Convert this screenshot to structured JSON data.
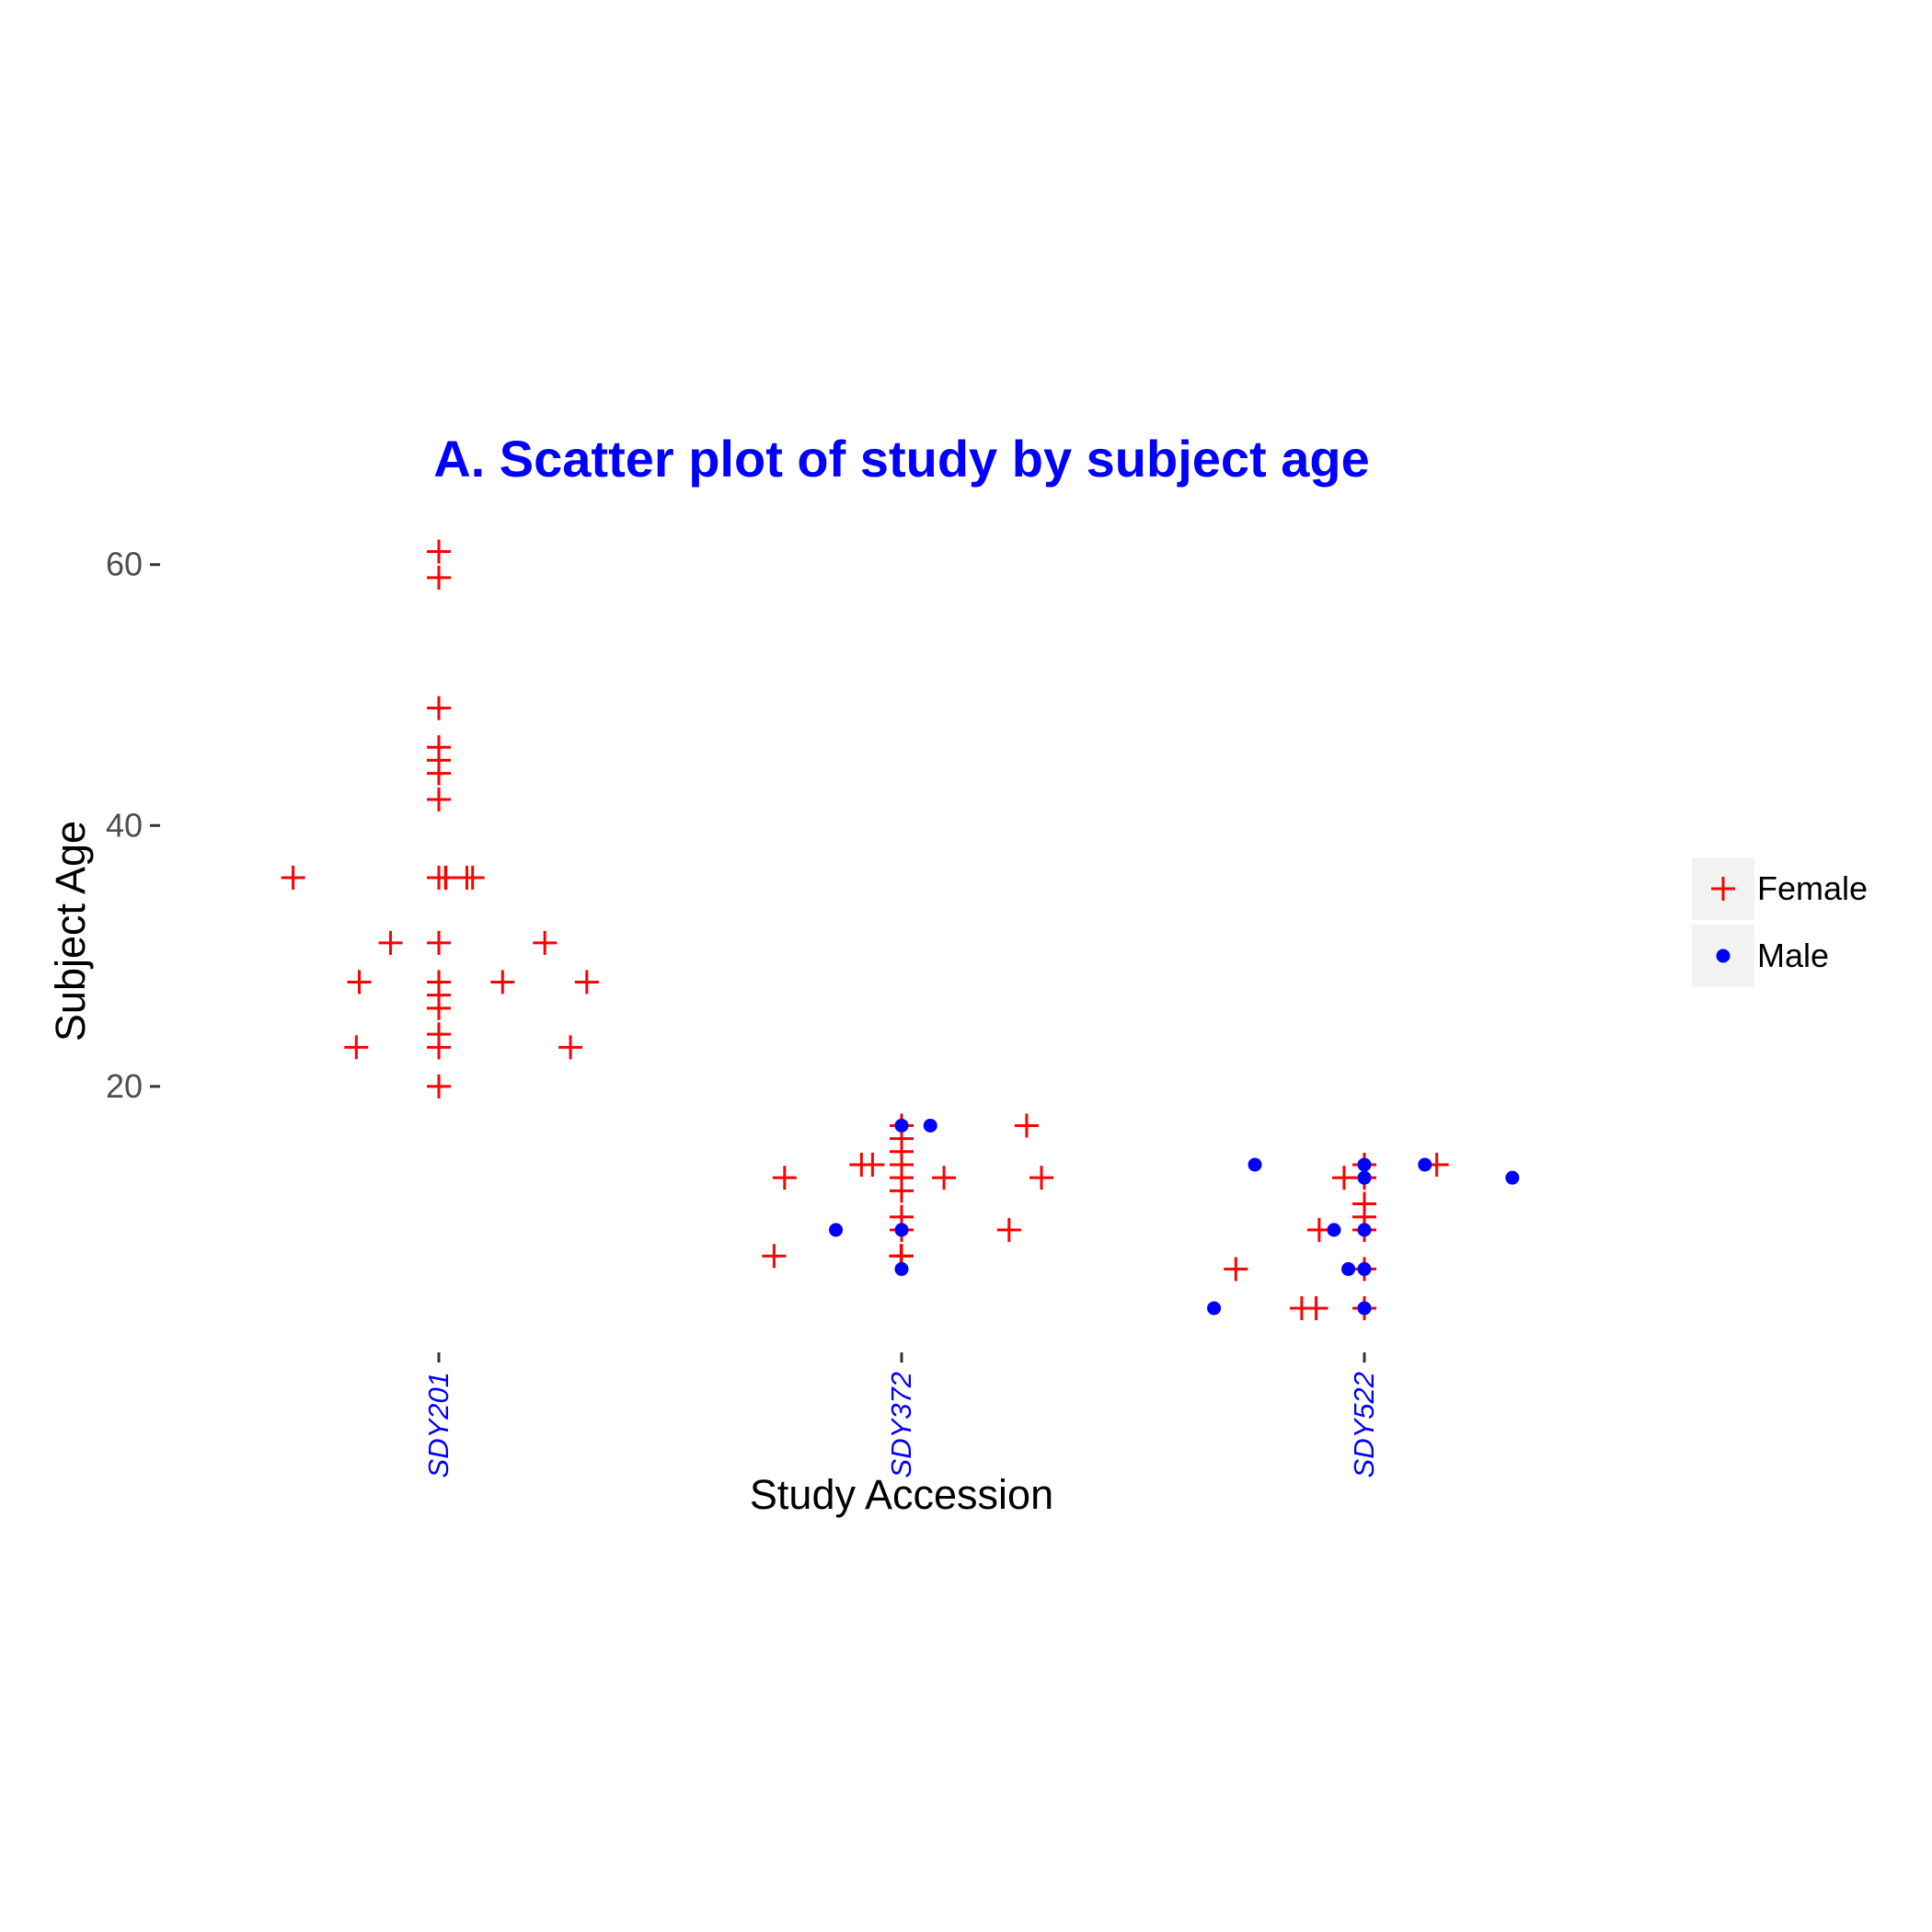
{
  "chart_data": {
    "type": "scatter",
    "title": "A. Scatter plot of study by subject age",
    "xlabel": "Study Accession",
    "ylabel": "Subject Age",
    "categories": [
      "SDY201",
      "SDY372",
      "SDY522"
    ],
    "y_ticks": [
      "20",
      "40",
      "60"
    ],
    "ylim": [
      0,
      63
    ],
    "grid": false,
    "legend_position": "right",
    "colors": {
      "title": "#0000ff",
      "xtick": "#0000ff",
      "female": "#ff0000",
      "male": "#0000ff"
    },
    "series": [
      {
        "name": "Female",
        "marker": "plus",
        "points": [
          {
            "study": "SDY201",
            "age": 61
          },
          {
            "study": "SDY201",
            "age": 59
          },
          {
            "study": "SDY201",
            "age": 49
          },
          {
            "study": "SDY201",
            "age": 46
          },
          {
            "study": "SDY201",
            "age": 45
          },
          {
            "study": "SDY201",
            "age": 44
          },
          {
            "study": "SDY201",
            "age": 42
          },
          {
            "study": "SDY201",
            "age": 36
          },
          {
            "study": "SDY201",
            "age": 36
          },
          {
            "study": "SDY201",
            "age": 36
          },
          {
            "study": "SDY201",
            "age": 36
          },
          {
            "study": "SDY201",
            "age": 36
          },
          {
            "study": "SDY201",
            "age": 36
          },
          {
            "study": "SDY201",
            "age": 31
          },
          {
            "study": "SDY201",
            "age": 31
          },
          {
            "study": "SDY201",
            "age": 31
          },
          {
            "study": "SDY201",
            "age": 28
          },
          {
            "study": "SDY201",
            "age": 28
          },
          {
            "study": "SDY201",
            "age": 28
          },
          {
            "study": "SDY201",
            "age": 28
          },
          {
            "study": "SDY201",
            "age": 27
          },
          {
            "study": "SDY201",
            "age": 26
          },
          {
            "study": "SDY201",
            "age": 24
          },
          {
            "study": "SDY201",
            "age": 23
          },
          {
            "study": "SDY201",
            "age": 23
          },
          {
            "study": "SDY201",
            "age": 23
          },
          {
            "study": "SDY201",
            "age": 20
          },
          {
            "study": "SDY372",
            "age": 17
          },
          {
            "study": "SDY372",
            "age": 17
          },
          {
            "study": "SDY372",
            "age": 16
          },
          {
            "study": "SDY372",
            "age": 15
          },
          {
            "study": "SDY372",
            "age": 14
          },
          {
            "study": "SDY372",
            "age": 14
          },
          {
            "study": "SDY372",
            "age": 14
          },
          {
            "study": "SDY372",
            "age": 13
          },
          {
            "study": "SDY372",
            "age": 13
          },
          {
            "study": "SDY372",
            "age": 13
          },
          {
            "study": "SDY372",
            "age": 13
          },
          {
            "study": "SDY372",
            "age": 12
          },
          {
            "study": "SDY372",
            "age": 10
          },
          {
            "study": "SDY372",
            "age": 9
          },
          {
            "study": "SDY372",
            "age": 9
          },
          {
            "study": "SDY372",
            "age": 7
          },
          {
            "study": "SDY372",
            "age": 7
          },
          {
            "study": "SDY372",
            "age": 7
          },
          {
            "study": "SDY522",
            "age": 14
          },
          {
            "study": "SDY522",
            "age": 14
          },
          {
            "study": "SDY522",
            "age": 13
          },
          {
            "study": "SDY522",
            "age": 13
          },
          {
            "study": "SDY522",
            "age": 11
          },
          {
            "study": "SDY522",
            "age": 10
          },
          {
            "study": "SDY522",
            "age": 9
          },
          {
            "study": "SDY522",
            "age": 9
          },
          {
            "study": "SDY522",
            "age": 6
          },
          {
            "study": "SDY522",
            "age": 6
          },
          {
            "study": "SDY522",
            "age": 3
          },
          {
            "study": "SDY522",
            "age": 3
          },
          {
            "study": "SDY522",
            "age": 3
          }
        ]
      },
      {
        "name": "Male",
        "marker": "dot",
        "points": [
          {
            "study": "SDY372",
            "age": 17
          },
          {
            "study": "SDY372",
            "age": 17
          },
          {
            "study": "SDY372",
            "age": 9
          },
          {
            "study": "SDY372",
            "age": 9
          },
          {
            "study": "SDY372",
            "age": 6
          },
          {
            "study": "SDY522",
            "age": 14
          },
          {
            "study": "SDY522",
            "age": 14
          },
          {
            "study": "SDY522",
            "age": 14
          },
          {
            "study": "SDY522",
            "age": 13
          },
          {
            "study": "SDY522",
            "age": 13
          },
          {
            "study": "SDY522",
            "age": 9
          },
          {
            "study": "SDY522",
            "age": 9
          },
          {
            "study": "SDY522",
            "age": 6
          },
          {
            "study": "SDY522",
            "age": 6
          },
          {
            "study": "SDY522",
            "age": 3
          },
          {
            "study": "SDY522",
            "age": 3
          }
        ]
      }
    ]
  }
}
